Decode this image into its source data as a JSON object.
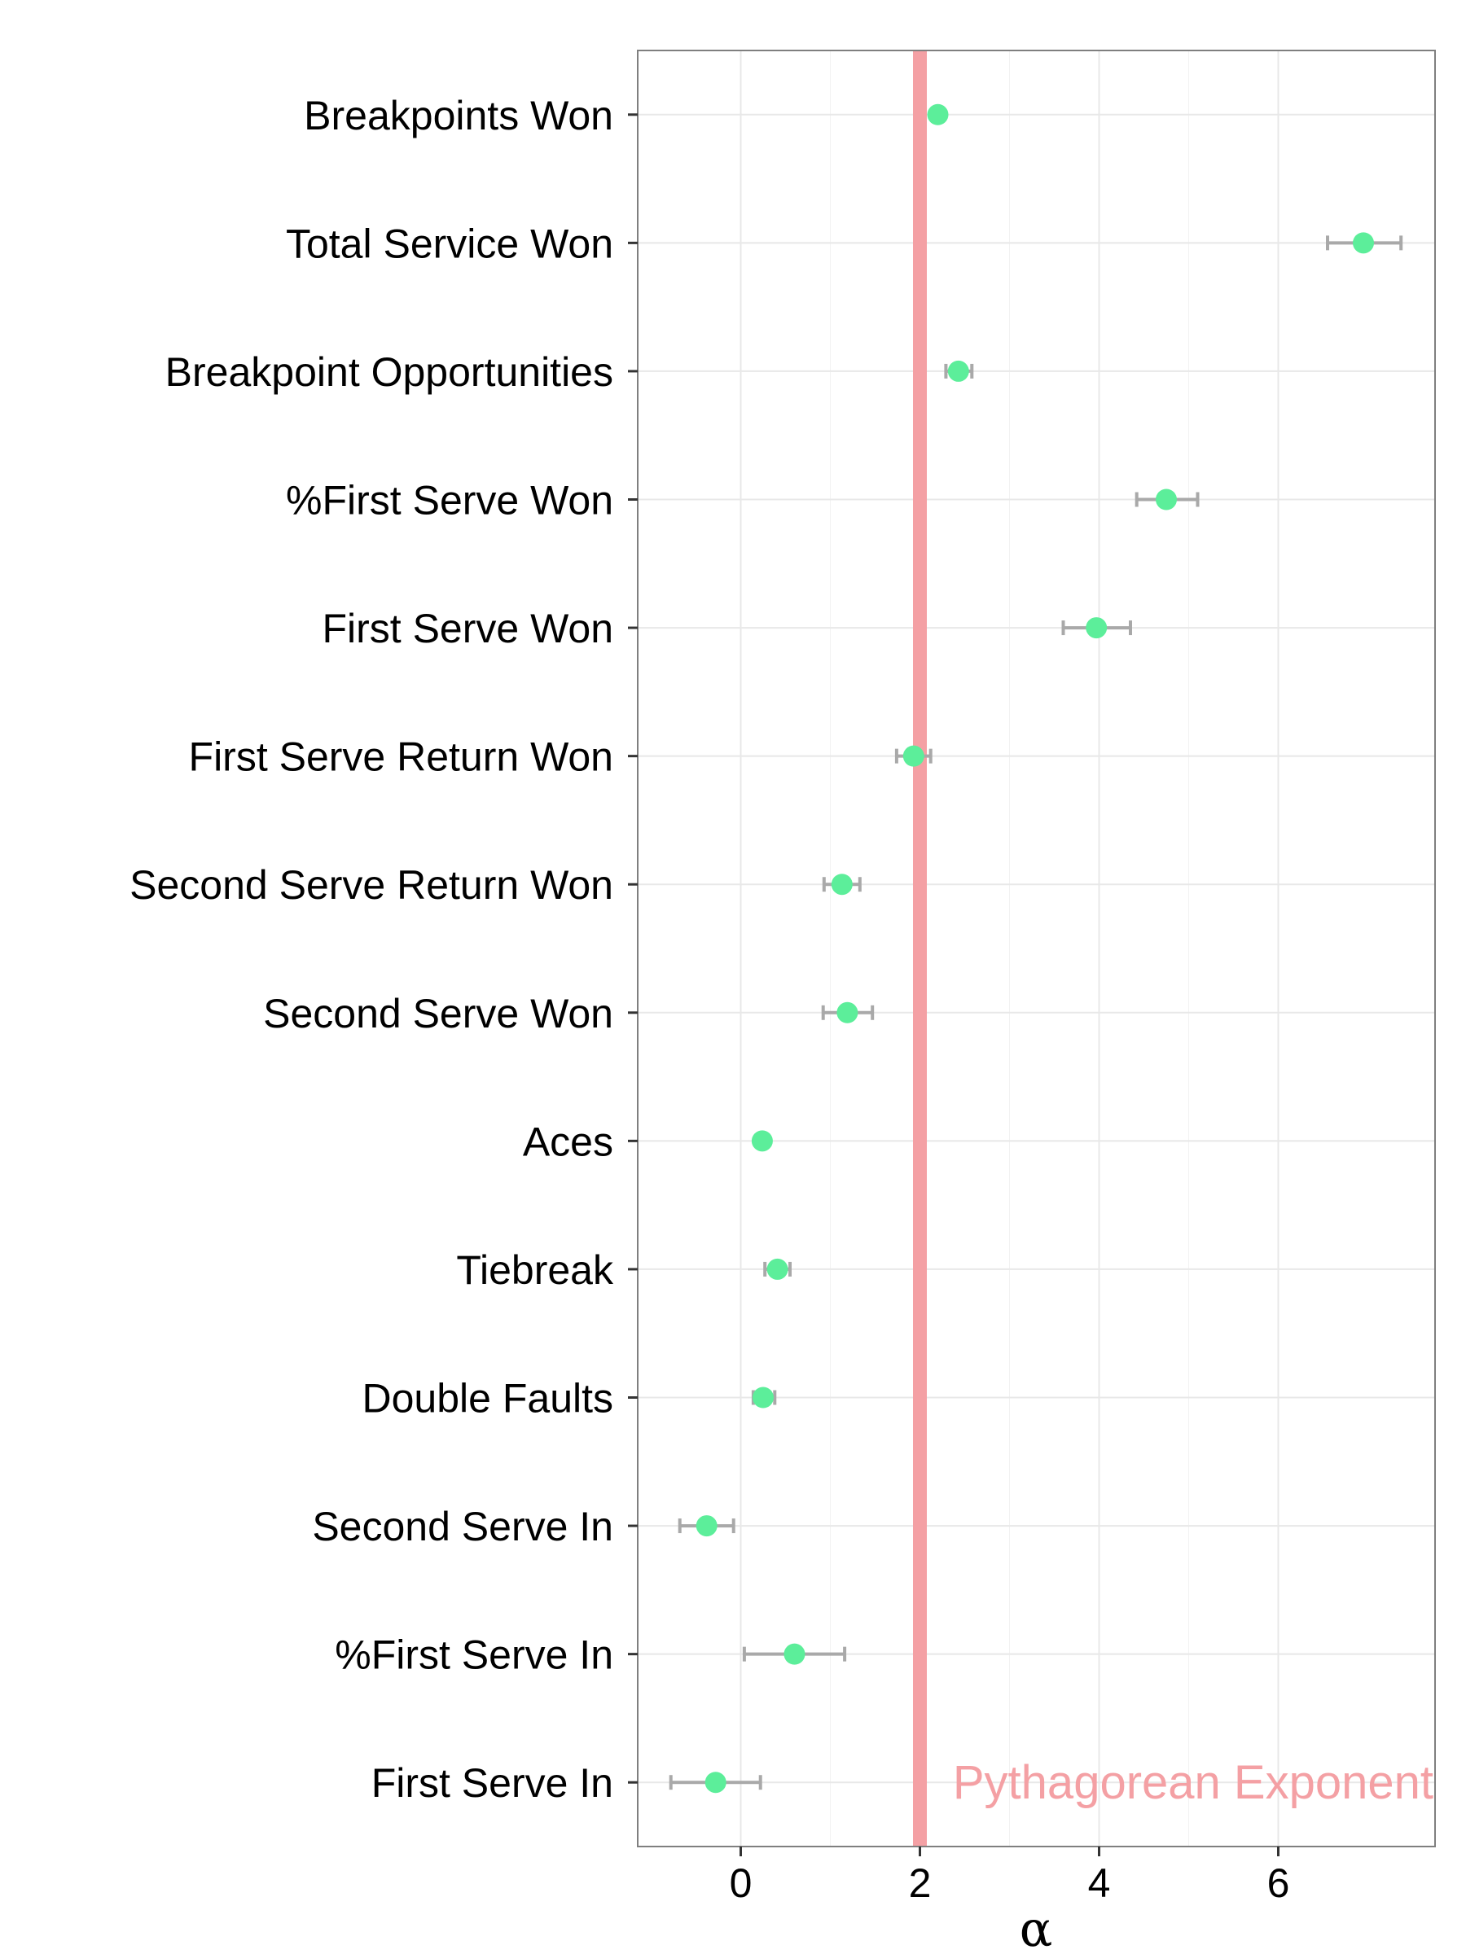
{
  "chart_data": {
    "type": "dot-errorbar",
    "xlabel": "α",
    "ylabel": "",
    "xlim": [
      -1.15,
      7.75
    ],
    "xticks": [
      0,
      2,
      4,
      6
    ],
    "xtick_labels": [
      "0",
      "2",
      "4",
      "6"
    ],
    "grid": true,
    "reference_line": {
      "x": 2.0,
      "label": "Pythagorean Exponent",
      "color": "#f4a0a4"
    },
    "point_color": "#5cee9a",
    "error_color": "#a9a9a9",
    "categories": [
      "Breakpoints Won",
      "Total Service Won",
      "Breakpoint Opportunities",
      "%First Serve Won",
      "First Serve Won",
      "First Serve Return Won",
      "Second Serve Return Won",
      "Second Serve Won",
      "Aces",
      "Tiebreak",
      "Double Faults",
      "Second Serve In",
      "%First Serve In",
      "First Serve In"
    ],
    "points": [
      {
        "label": "Breakpoints Won",
        "value": 2.2,
        "low": 2.2,
        "high": 2.2
      },
      {
        "label": "Total Service Won",
        "value": 6.95,
        "low": 6.55,
        "high": 7.37
      },
      {
        "label": "Breakpoint Opportunities",
        "value": 2.43,
        "low": 2.29,
        "high": 2.58
      },
      {
        "label": "%First Serve Won",
        "value": 4.75,
        "low": 4.42,
        "high": 5.1
      },
      {
        "label": "First Serve Won",
        "value": 3.97,
        "low": 3.6,
        "high": 4.35
      },
      {
        "label": "First Serve Return Won",
        "value": 1.93,
        "low": 1.74,
        "high": 2.12
      },
      {
        "label": "Second Serve Return Won",
        "value": 1.13,
        "low": 0.93,
        "high": 1.33
      },
      {
        "label": "Second Serve Won",
        "value": 1.19,
        "low": 0.92,
        "high": 1.47
      },
      {
        "label": "Aces",
        "value": 0.24,
        "low": 0.24,
        "high": 0.24
      },
      {
        "label": "Tiebreak",
        "value": 0.41,
        "low": 0.27,
        "high": 0.55
      },
      {
        "label": "Double Faults",
        "value": 0.25,
        "low": 0.14,
        "high": 0.38
      },
      {
        "label": "Second Serve In",
        "value": -0.38,
        "low": -0.68,
        "high": -0.08
      },
      {
        "label": "%First Serve In",
        "value": 0.6,
        "low": 0.04,
        "high": 1.16
      },
      {
        "label": "First Serve In",
        "value": -0.28,
        "low": -0.78,
        "high": 0.22
      }
    ]
  }
}
